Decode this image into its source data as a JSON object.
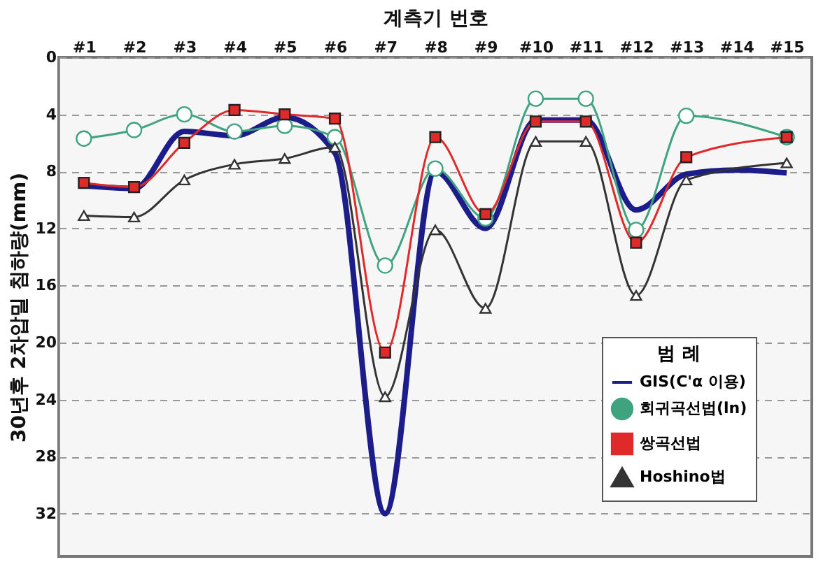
{
  "chart_data": {
    "type": "line",
    "xlabel": "계측기 번호",
    "ylabel": "30년후 2차압밀 침하량(mm)",
    "legend_title": "범 례",
    "categories": [
      "#1",
      "#2",
      "#3",
      "#4",
      "#5",
      "#6",
      "#7",
      "#8",
      "#9",
      "#10",
      "#11",
      "#12",
      "#13",
      "#14",
      "#15"
    ],
    "series": [
      {
        "name": "GIS(C'α 이용)",
        "color": "#1c1c8a",
        "marker": "none",
        "values": [
          9.0,
          9.2,
          5.2,
          5.5,
          4.2,
          6.7,
          32,
          8.0,
          12.0,
          4.4,
          4.4,
          10.7,
          8.2,
          7.9,
          8.1
        ]
      },
      {
        "name": "회귀곡선법(ln)",
        "color": "#3fa37f",
        "marker": "circle",
        "values": [
          5.7,
          5.1,
          4.0,
          5.2,
          4.8,
          5.6,
          14.6,
          7.8,
          11.3,
          2.9,
          2.9,
          12.1,
          4.1,
          null,
          5.6
        ]
      },
      {
        "name": "쌍곡선법",
        "color": "#e02a2a",
        "marker": "square",
        "values": [
          8.8,
          9.1,
          6.0,
          3.7,
          4.0,
          4.3,
          20.7,
          5.6,
          11.0,
          4.5,
          4.5,
          13.0,
          7.0,
          null,
          5.6
        ]
      },
      {
        "name": "Hoshino법",
        "color": "#333333",
        "marker": "triangle",
        "values": [
          11.1,
          11.2,
          8.6,
          7.5,
          7.1,
          6.3,
          23.8,
          12.1,
          17.6,
          5.9,
          5.9,
          16.7,
          8.6,
          null,
          7.4
        ]
      }
    ],
    "ylim": [
      35,
      0
    ],
    "yticks": [
      0,
      4,
      8,
      12,
      16,
      20,
      24,
      28,
      32
    ],
    "grid": "y",
    "legend": "bottom right",
    "line_style": "solid"
  }
}
